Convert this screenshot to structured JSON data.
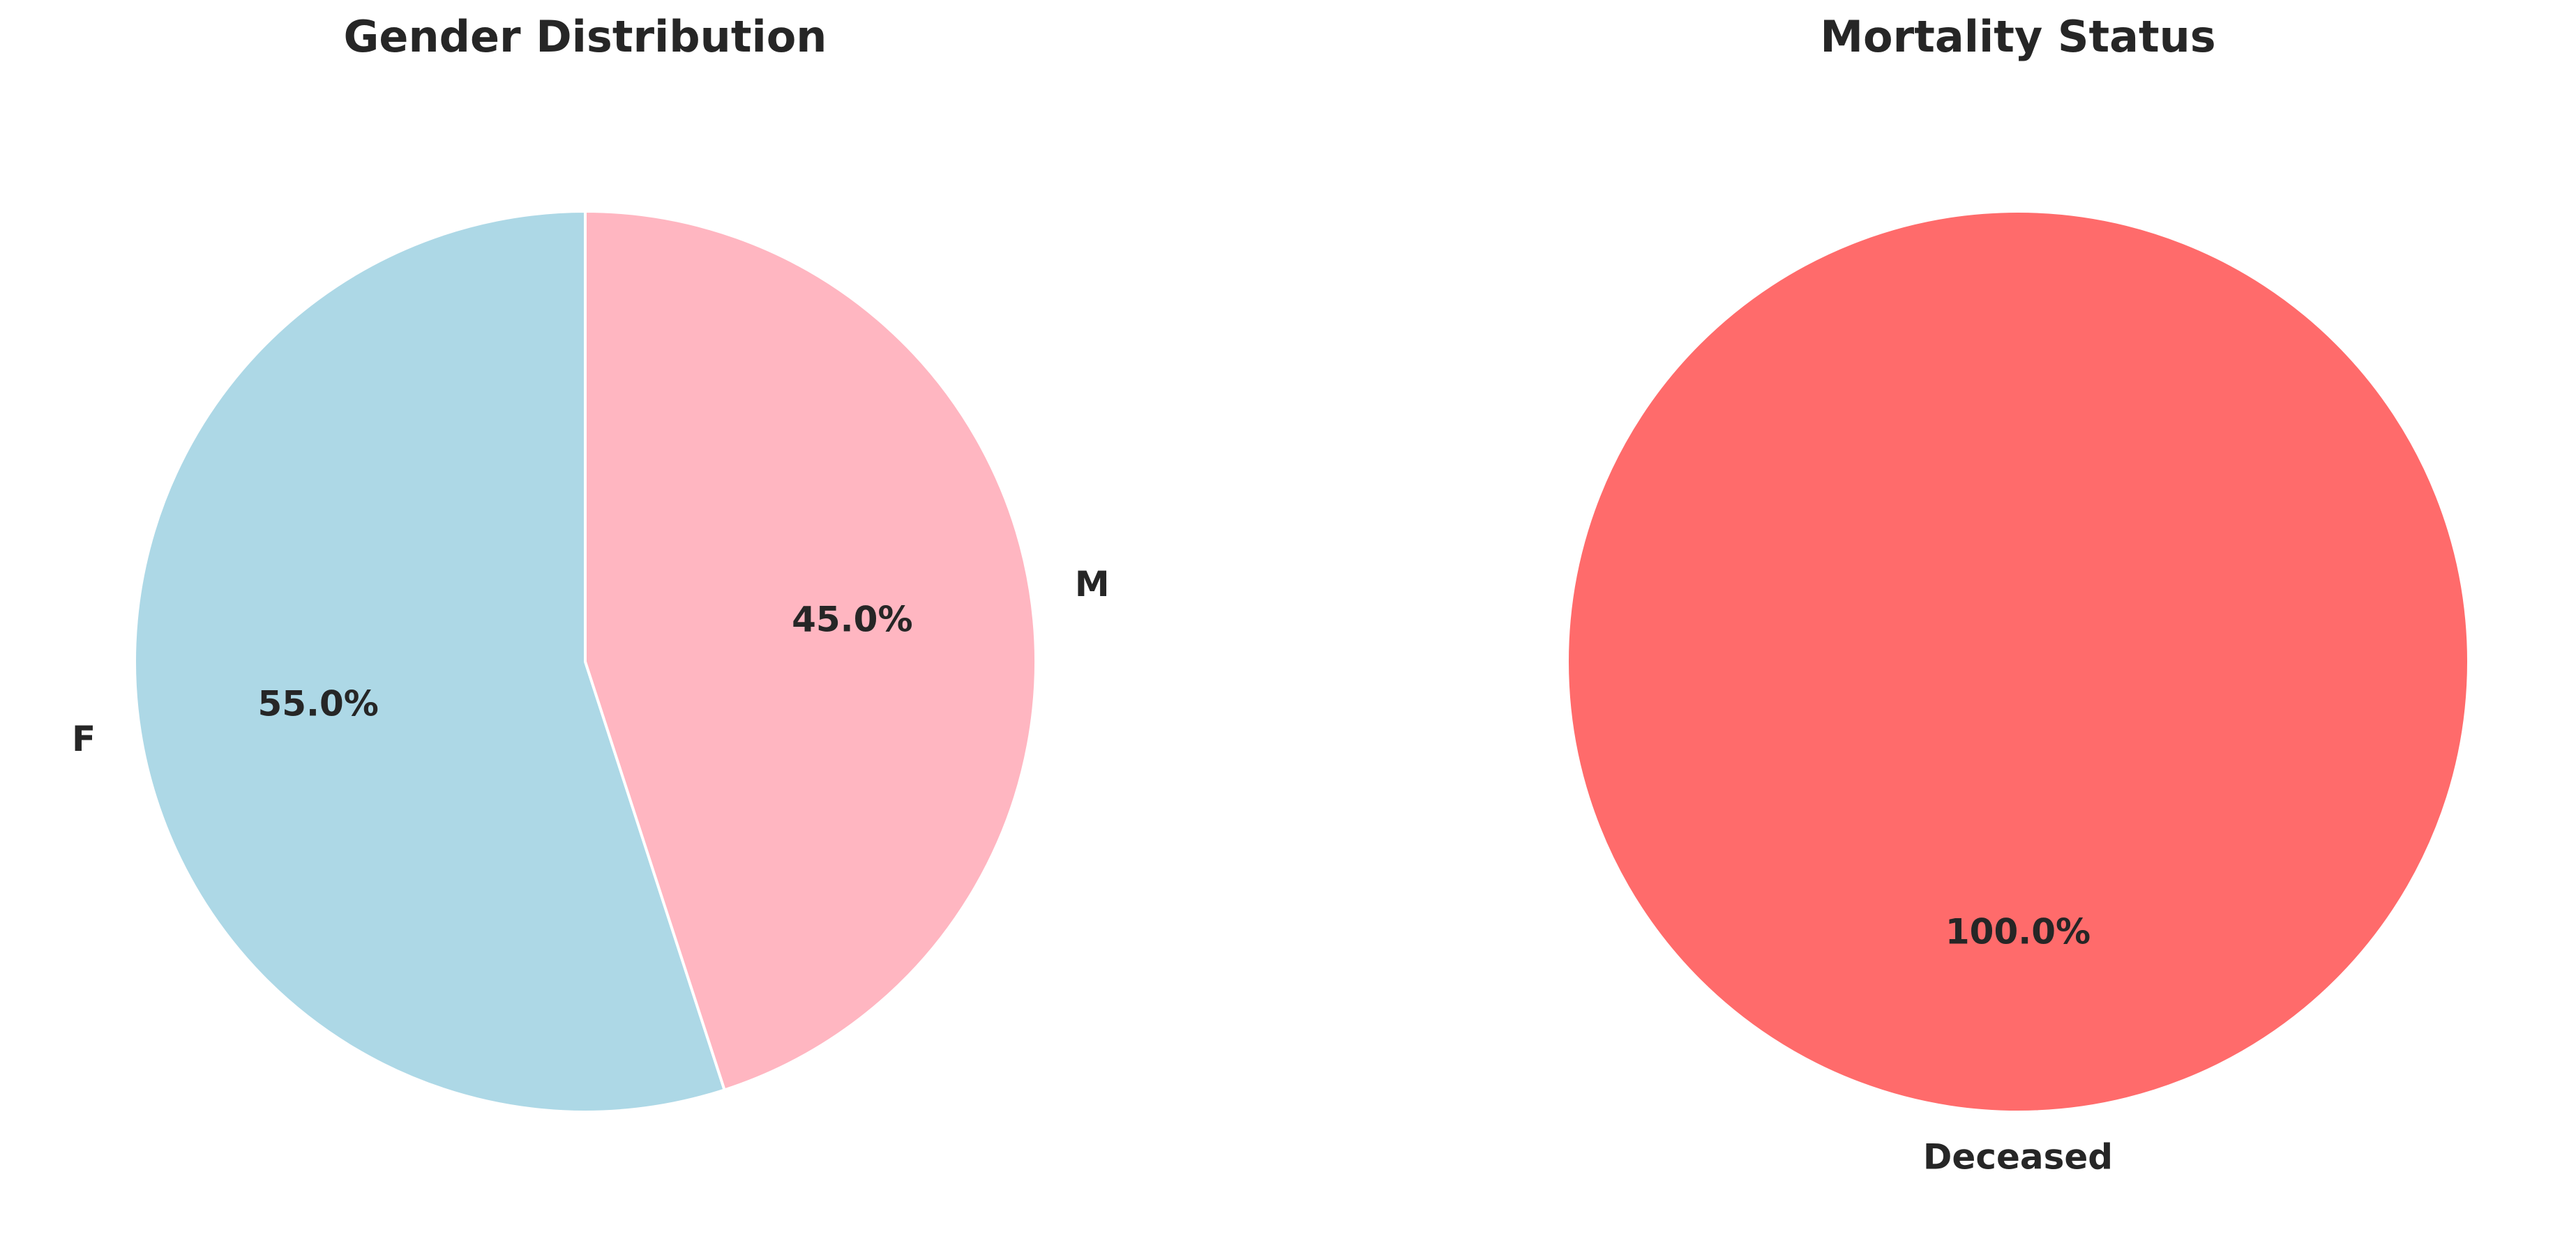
{
  "chart_data": [
    {
      "type": "pie",
      "title": "Gender Distribution",
      "categories": [
        "F",
        "M"
      ],
      "values": [
        55.0,
        45.0
      ],
      "percent_labels": [
        "55.0%",
        "45.0%"
      ],
      "colors": [
        "#add8e6",
        "#ffb6c1"
      ],
      "start_angle_deg": 90,
      "direction": "counterclockwise",
      "edge_color": "#ffffff"
    },
    {
      "type": "pie",
      "title": "Mortality Status",
      "categories": [
        "Deceased"
      ],
      "values": [
        100.0
      ],
      "percent_labels": [
        "100.0%"
      ],
      "colors": [
        "#ff6b6b"
      ],
      "start_angle_deg": 90,
      "direction": "counterclockwise",
      "edge_color": "#ffffff"
    }
  ]
}
